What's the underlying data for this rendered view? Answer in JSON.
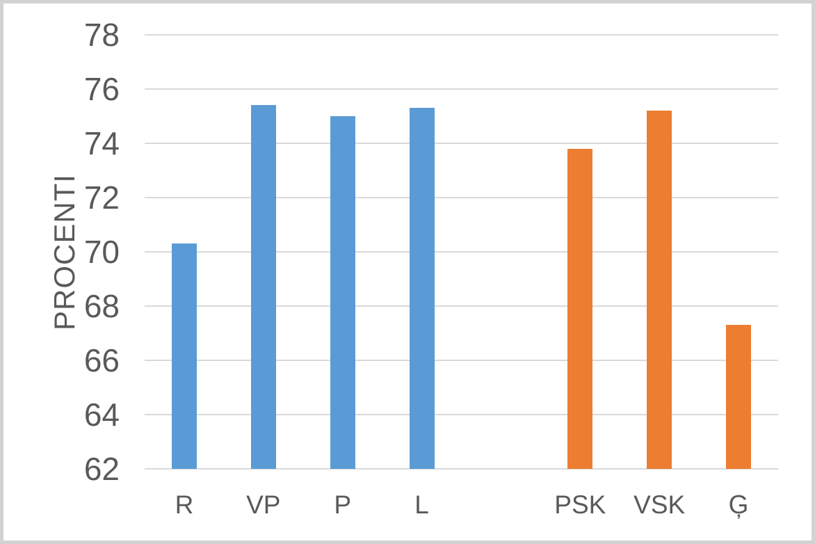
{
  "page": {
    "background_color": "#FFFFFF",
    "frame_border_color": "#D2D2D2"
  },
  "chart_data": {
    "type": "bar",
    "title": "",
    "xlabel": "",
    "ylabel": "PROCENTI",
    "ylim": [
      62,
      78
    ],
    "yticks": [
      78,
      76,
      74,
      72,
      70,
      68,
      66,
      64,
      62
    ],
    "grid": true,
    "legend": "none",
    "categories": [
      "R",
      "VP",
      "P",
      "L",
      "",
      "PSK",
      "VSK",
      "Ģ"
    ],
    "values": [
      70.3,
      75.4,
      75.0,
      75.3,
      null,
      73.8,
      75.2,
      67.3
    ],
    "bar_colors": [
      "#5B9BD5",
      "#5B9BD5",
      "#5B9BD5",
      "#5B9BD5",
      null,
      "#ED7D31",
      "#ED7D31",
      "#ED7D31"
    ],
    "gridline_color": "#D9D9D9",
    "axis_text_color": "#595959"
  }
}
